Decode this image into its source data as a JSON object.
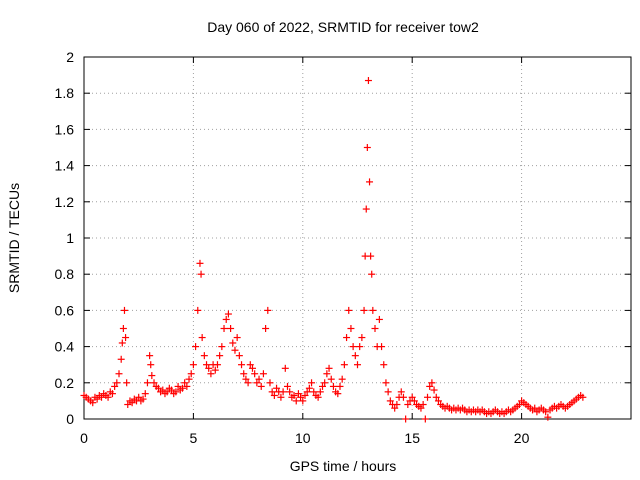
{
  "chart_data": {
    "type": "scatter",
    "title": "Day 060 of 2022, SRMTID for receiver tow2",
    "xlabel": "GPS time / hours",
    "ylabel": "SRMTID / TECUs",
    "xlim": [
      0,
      25
    ],
    "ylim": [
      0,
      2
    ],
    "xticks": [
      0,
      5,
      10,
      15,
      20
    ],
    "yticks": [
      0,
      0.2,
      0.4,
      0.6,
      0.8,
      1,
      1.2,
      1.4,
      1.6,
      1.8,
      2
    ],
    "xtick_labels": [
      "0",
      "5",
      "10",
      "15",
      "20"
    ],
    "ytick_labels": [
      "0",
      "0.2",
      "0.4",
      "0.6",
      "0.8",
      "1",
      "1.2",
      "1.4",
      "1.6",
      "1.8",
      "2"
    ],
    "grid": true,
    "marker": "+",
    "color": "#ff0000",
    "series": [
      {
        "name": "SRMTID",
        "points": [
          [
            0.0,
            0.13
          ],
          [
            0.1,
            0.12
          ],
          [
            0.2,
            0.11
          ],
          [
            0.3,
            0.1
          ],
          [
            0.4,
            0.09
          ],
          [
            0.5,
            0.12
          ],
          [
            0.6,
            0.11
          ],
          [
            0.7,
            0.13
          ],
          [
            0.8,
            0.12
          ],
          [
            0.9,
            0.14
          ],
          [
            1.0,
            0.13
          ],
          [
            1.1,
            0.12
          ],
          [
            1.2,
            0.15
          ],
          [
            1.3,
            0.14
          ],
          [
            1.4,
            0.18
          ],
          [
            1.5,
            0.2
          ],
          [
            1.6,
            0.25
          ],
          [
            1.7,
            0.33
          ],
          [
            1.75,
            0.42
          ],
          [
            1.8,
            0.5
          ],
          [
            1.85,
            0.6
          ],
          [
            1.9,
            0.45
          ],
          [
            1.95,
            0.2
          ],
          [
            2.0,
            0.08
          ],
          [
            2.1,
            0.1
          ],
          [
            2.2,
            0.09
          ],
          [
            2.3,
            0.11
          ],
          [
            2.4,
            0.1
          ],
          [
            2.5,
            0.12
          ],
          [
            2.6,
            0.1
          ],
          [
            2.7,
            0.11
          ],
          [
            2.8,
            0.14
          ],
          [
            2.9,
            0.2
          ],
          [
            3.0,
            0.35
          ],
          [
            3.05,
            0.3
          ],
          [
            3.1,
            0.24
          ],
          [
            3.2,
            0.2
          ],
          [
            3.3,
            0.18
          ],
          [
            3.4,
            0.17
          ],
          [
            3.5,
            0.15
          ],
          [
            3.6,
            0.16
          ],
          [
            3.7,
            0.14
          ],
          [
            3.8,
            0.15
          ],
          [
            3.9,
            0.17
          ],
          [
            4.0,
            0.16
          ],
          [
            4.1,
            0.14
          ],
          [
            4.2,
            0.15
          ],
          [
            4.3,
            0.18
          ],
          [
            4.4,
            0.16
          ],
          [
            4.5,
            0.17
          ],
          [
            4.6,
            0.2
          ],
          [
            4.7,
            0.18
          ],
          [
            4.8,
            0.22
          ],
          [
            4.9,
            0.25
          ],
          [
            5.0,
            0.3
          ],
          [
            5.1,
            0.4
          ],
          [
            5.2,
            0.6
          ],
          [
            5.3,
            0.86
          ],
          [
            5.35,
            0.8
          ],
          [
            5.4,
            0.45
          ],
          [
            5.5,
            0.35
          ],
          [
            5.6,
            0.3
          ],
          [
            5.7,
            0.28
          ],
          [
            5.8,
            0.25
          ],
          [
            5.9,
            0.3
          ],
          [
            6.0,
            0.27
          ],
          [
            6.1,
            0.3
          ],
          [
            6.2,
            0.35
          ],
          [
            6.3,
            0.4
          ],
          [
            6.4,
            0.5
          ],
          [
            6.5,
            0.55
          ],
          [
            6.6,
            0.58
          ],
          [
            6.7,
            0.5
          ],
          [
            6.8,
            0.42
          ],
          [
            6.9,
            0.38
          ],
          [
            7.0,
            0.45
          ],
          [
            7.1,
            0.35
          ],
          [
            7.2,
            0.3
          ],
          [
            7.3,
            0.25
          ],
          [
            7.4,
            0.22
          ],
          [
            7.5,
            0.2
          ],
          [
            7.6,
            0.3
          ],
          [
            7.7,
            0.28
          ],
          [
            7.8,
            0.25
          ],
          [
            7.9,
            0.2
          ],
          [
            8.0,
            0.22
          ],
          [
            8.1,
            0.18
          ],
          [
            8.2,
            0.25
          ],
          [
            8.3,
            0.5
          ],
          [
            8.4,
            0.6
          ],
          [
            8.5,
            0.2
          ],
          [
            8.6,
            0.15
          ],
          [
            8.7,
            0.13
          ],
          [
            8.8,
            0.17
          ],
          [
            8.9,
            0.15
          ],
          [
            9.0,
            0.12
          ],
          [
            9.1,
            0.15
          ],
          [
            9.2,
            0.28
          ],
          [
            9.3,
            0.18
          ],
          [
            9.4,
            0.15
          ],
          [
            9.5,
            0.12
          ],
          [
            9.6,
            0.13
          ],
          [
            9.7,
            0.1
          ],
          [
            9.8,
            0.14
          ],
          [
            9.9,
            0.12
          ],
          [
            10.0,
            0.1
          ],
          [
            10.1,
            0.13
          ],
          [
            10.2,
            0.15
          ],
          [
            10.3,
            0.17
          ],
          [
            10.4,
            0.2
          ],
          [
            10.5,
            0.15
          ],
          [
            10.6,
            0.13
          ],
          [
            10.7,
            0.12
          ],
          [
            10.8,
            0.15
          ],
          [
            10.9,
            0.18
          ],
          [
            11.0,
            0.2
          ],
          [
            11.1,
            0.25
          ],
          [
            11.2,
            0.28
          ],
          [
            11.3,
            0.22
          ],
          [
            11.4,
            0.18
          ],
          [
            11.5,
            0.15
          ],
          [
            11.6,
            0.14
          ],
          [
            11.7,
            0.18
          ],
          [
            11.8,
            0.22
          ],
          [
            11.9,
            0.3
          ],
          [
            12.0,
            0.45
          ],
          [
            12.1,
            0.6
          ],
          [
            12.2,
            0.5
          ],
          [
            12.3,
            0.4
          ],
          [
            12.4,
            0.35
          ],
          [
            12.5,
            0.3
          ],
          [
            12.6,
            0.4
          ],
          [
            12.7,
            0.45
          ],
          [
            12.8,
            0.6
          ],
          [
            12.85,
            0.9
          ],
          [
            12.9,
            1.16
          ],
          [
            12.95,
            1.5
          ],
          [
            13.0,
            1.87
          ],
          [
            13.05,
            1.31
          ],
          [
            13.1,
            0.9
          ],
          [
            13.15,
            0.8
          ],
          [
            13.2,
            0.6
          ],
          [
            13.3,
            0.5
          ],
          [
            13.4,
            0.4
          ],
          [
            13.5,
            0.55
          ],
          [
            13.6,
            0.4
          ],
          [
            13.7,
            0.3
          ],
          [
            13.8,
            0.2
          ],
          [
            13.9,
            0.15
          ],
          [
            14.0,
            0.1
          ],
          [
            14.1,
            0.08
          ],
          [
            14.2,
            0.06
          ],
          [
            14.3,
            0.08
          ],
          [
            14.4,
            0.12
          ],
          [
            14.5,
            0.15
          ],
          [
            14.6,
            0.12
          ],
          [
            14.7,
            0.0
          ],
          [
            14.8,
            0.08
          ],
          [
            14.9,
            0.1
          ],
          [
            15.0,
            0.12
          ],
          [
            15.1,
            0.1
          ],
          [
            15.2,
            0.08
          ],
          [
            15.3,
            0.07
          ],
          [
            15.4,
            0.06
          ],
          [
            15.5,
            0.08
          ],
          [
            15.6,
            0.0
          ],
          [
            15.7,
            0.12
          ],
          [
            15.8,
            0.18
          ],
          [
            15.9,
            0.2
          ],
          [
            16.0,
            0.16
          ],
          [
            16.1,
            0.12
          ],
          [
            16.2,
            0.1
          ],
          [
            16.3,
            0.08
          ],
          [
            16.4,
            0.07
          ],
          [
            16.5,
            0.06
          ],
          [
            16.6,
            0.07
          ],
          [
            16.7,
            0.06
          ],
          [
            16.8,
            0.05
          ],
          [
            16.9,
            0.06
          ],
          [
            17.0,
            0.05
          ],
          [
            17.1,
            0.06
          ],
          [
            17.2,
            0.05
          ],
          [
            17.3,
            0.06
          ],
          [
            17.4,
            0.05
          ],
          [
            17.5,
            0.04
          ],
          [
            17.6,
            0.05
          ],
          [
            17.7,
            0.04
          ],
          [
            17.8,
            0.05
          ],
          [
            17.9,
            0.04
          ],
          [
            18.0,
            0.05
          ],
          [
            18.1,
            0.04
          ],
          [
            18.2,
            0.05
          ],
          [
            18.3,
            0.04
          ],
          [
            18.4,
            0.03
          ],
          [
            18.5,
            0.04
          ],
          [
            18.6,
            0.03
          ],
          [
            18.7,
            0.04
          ],
          [
            18.8,
            0.05
          ],
          [
            18.9,
            0.04
          ],
          [
            19.0,
            0.03
          ],
          [
            19.1,
            0.04
          ],
          [
            19.2,
            0.03
          ],
          [
            19.3,
            0.04
          ],
          [
            19.4,
            0.05
          ],
          [
            19.5,
            0.04
          ],
          [
            19.6,
            0.05
          ],
          [
            19.7,
            0.06
          ],
          [
            19.8,
            0.07
          ],
          [
            19.9,
            0.08
          ],
          [
            20.0,
            0.1
          ],
          [
            20.1,
            0.09
          ],
          [
            20.2,
            0.08
          ],
          [
            20.3,
            0.07
          ],
          [
            20.4,
            0.06
          ],
          [
            20.5,
            0.05
          ],
          [
            20.6,
            0.06
          ],
          [
            20.7,
            0.04
          ],
          [
            20.8,
            0.05
          ],
          [
            20.9,
            0.06
          ],
          [
            21.0,
            0.05
          ],
          [
            21.1,
            0.04
          ],
          [
            21.2,
            0.01
          ],
          [
            21.3,
            0.05
          ],
          [
            21.4,
            0.06
          ],
          [
            21.5,
            0.07
          ],
          [
            21.6,
            0.06
          ],
          [
            21.7,
            0.07
          ],
          [
            21.8,
            0.08
          ],
          [
            21.9,
            0.07
          ],
          [
            22.0,
            0.06
          ],
          [
            22.1,
            0.07
          ],
          [
            22.2,
            0.08
          ],
          [
            22.3,
            0.09
          ],
          [
            22.4,
            0.1
          ],
          [
            22.5,
            0.11
          ],
          [
            22.6,
            0.12
          ],
          [
            22.7,
            0.13
          ],
          [
            22.8,
            0.12
          ]
        ]
      }
    ]
  }
}
